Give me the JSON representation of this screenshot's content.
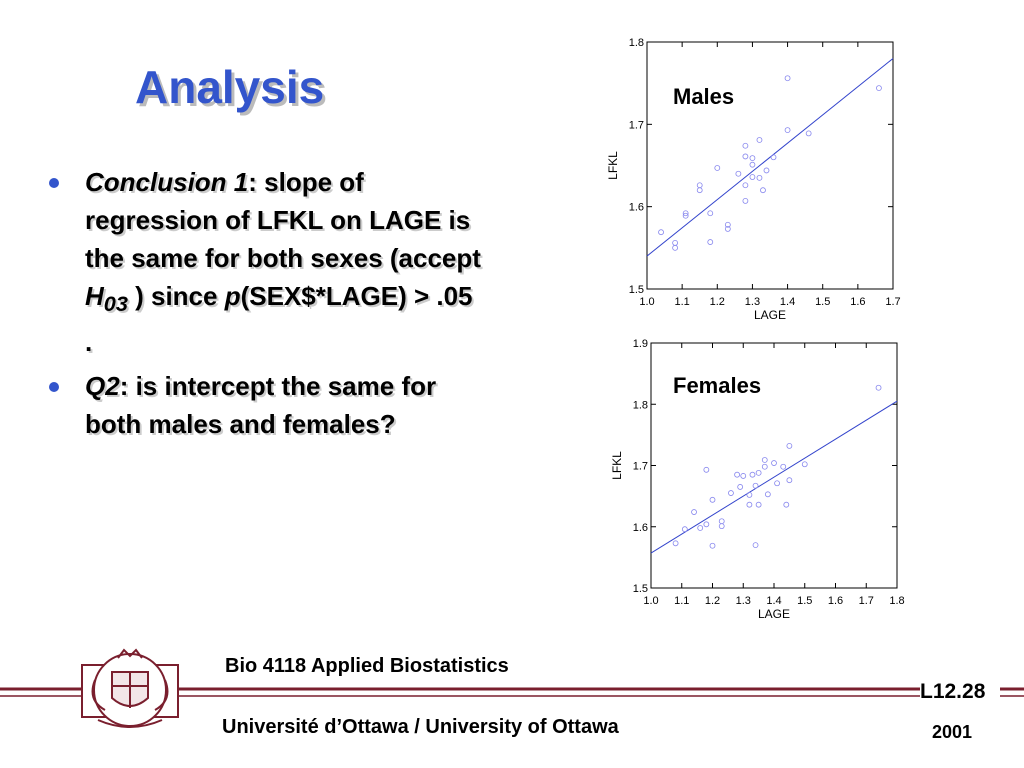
{
  "slide": {
    "title": "Analysis",
    "bullets": [
      [
        "Conclusion 1",
        ": slope of regression of LFKL on LAGE is the same for both sexes (accept ",
        "H",
        "03",
        " ) since ",
        "p",
        "(SEX$*LAGE) > .05 ."
      ],
      [
        "Q2",
        ": is intercept the same for both males and females?"
      ]
    ]
  },
  "footer": {
    "course": "Bio 4118 Applied Biostatistics",
    "slide_number": "L12.28",
    "university": "Université d’Ottawa / University of Ottawa",
    "year": "2001"
  },
  "chart_data": [
    {
      "type": "scatter",
      "title": "Males",
      "x_label": "LAGE",
      "y_label": "LFKL",
      "xlim": [
        1.0,
        1.7
      ],
      "ylim": [
        1.5,
        1.8
      ],
      "xticks": [
        {
          "value": 1.0,
          "label": "1.0"
        },
        1.1,
        1.2,
        1.3,
        1.4,
        1.5,
        1.6,
        1.7
      ],
      "yticks": [
        1.5,
        1.6,
        1.7,
        1.8
      ],
      "series": [
        {
          "color": "#8888ee",
          "x": [
            1.04,
            1.08,
            1.08,
            1.11,
            1.11,
            1.15,
            1.15,
            1.18,
            1.18,
            1.2,
            1.23,
            1.23,
            1.26,
            1.28,
            1.28,
            1.28,
            1.28,
            1.3,
            1.3,
            1.3,
            1.32,
            1.32,
            1.33,
            1.34,
            1.36,
            1.4,
            1.4,
            1.46,
            1.66
          ],
          "values": [
            1.569,
            1.556,
            1.55,
            1.592,
            1.589,
            1.626,
            1.62,
            1.557,
            1.592,
            1.647,
            1.578,
            1.573,
            1.64,
            1.607,
            1.674,
            1.661,
            1.626,
            1.659,
            1.651,
            1.636,
            1.681,
            1.635,
            1.62,
            1.644,
            1.66,
            1.693,
            1.756,
            1.689,
            1.744
          ]
        }
      ],
      "trend": {
        "color": "#3344cc",
        "x": [
          1.0,
          1.7
        ],
        "y": [
          1.54,
          1.78
        ]
      }
    },
    {
      "type": "scatter",
      "title": "Females",
      "x_label": "LAGE",
      "y_label": "LFKL",
      "xlim": [
        1.0,
        1.8
      ],
      "ylim": [
        1.5,
        1.9
      ],
      "xticks": [
        {
          "value": 1.0,
          "label": "1.0"
        },
        1.1,
        1.2,
        1.3,
        1.4,
        1.5,
        1.6,
        1.7,
        1.8
      ],
      "yticks": [
        1.5,
        1.6,
        1.7,
        1.8,
        1.9
      ],
      "series": [
        {
          "color": "#8888ee",
          "x": [
            1.08,
            1.11,
            1.14,
            1.16,
            1.18,
            1.18,
            1.2,
            1.2,
            1.23,
            1.23,
            1.26,
            1.28,
            1.29,
            1.3,
            1.32,
            1.32,
            1.33,
            1.34,
            1.34,
            1.35,
            1.35,
            1.37,
            1.37,
            1.38,
            1.4,
            1.41,
            1.43,
            1.44,
            1.45,
            1.45,
            1.5,
            1.74
          ],
          "values": [
            1.573,
            1.596,
            1.624,
            1.598,
            1.693,
            1.604,
            1.569,
            1.644,
            1.609,
            1.601,
            1.655,
            1.685,
            1.665,
            1.683,
            1.636,
            1.652,
            1.685,
            1.667,
            1.57,
            1.636,
            1.688,
            1.698,
            1.709,
            1.653,
            1.704,
            1.671,
            1.698,
            1.636,
            1.732,
            1.676,
            1.702,
            1.827
          ]
        }
      ],
      "trend": {
        "color": "#3344cc",
        "x": [
          1.0,
          1.8
        ],
        "y": [
          1.557,
          1.805
        ]
      }
    }
  ]
}
